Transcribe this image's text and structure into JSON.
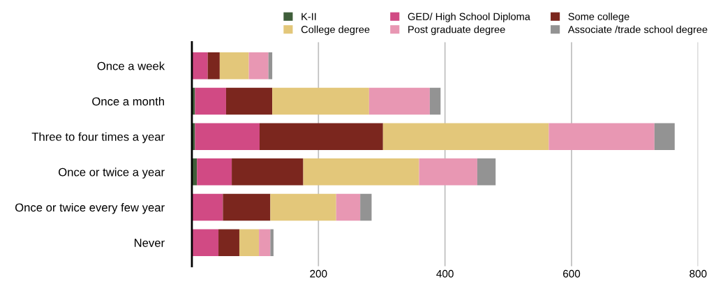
{
  "chart_data": {
    "type": "bar",
    "orientation": "horizontal",
    "stacked": true,
    "categories": [
      "Once a week",
      "Once a month",
      "Three to four times a year",
      "Once or twice a year",
      "Once or twice every few year",
      "Never"
    ],
    "series": [
      {
        "name": "K-II",
        "color": "#3f5e3a",
        "values": [
          0,
          5,
          5,
          8,
          0,
          0
        ]
      },
      {
        "name": "GED/ High School Diploma",
        "color": "#d14a84",
        "values": [
          25,
          49,
          102,
          55,
          49,
          42
        ]
      },
      {
        "name": "Some college",
        "color": "#7b261e",
        "values": [
          19,
          73,
          195,
          113,
          75,
          33
        ]
      },
      {
        "name": "College degree",
        "color": "#e3c77a",
        "values": [
          46,
          153,
          262,
          183,
          104,
          31
        ]
      },
      {
        "name": "Post graduate degree",
        "color": "#e897b3",
        "values": [
          31,
          96,
          167,
          92,
          38,
          18
        ]
      },
      {
        "name": "Associate /trade school degree",
        "color": "#939393",
        "values": [
          6,
          17,
          32,
          29,
          18,
          5
        ]
      }
    ],
    "xlim": [
      0,
      800
    ],
    "xticks": [
      200,
      400,
      600,
      800
    ],
    "grid": "x",
    "legend": "top"
  }
}
